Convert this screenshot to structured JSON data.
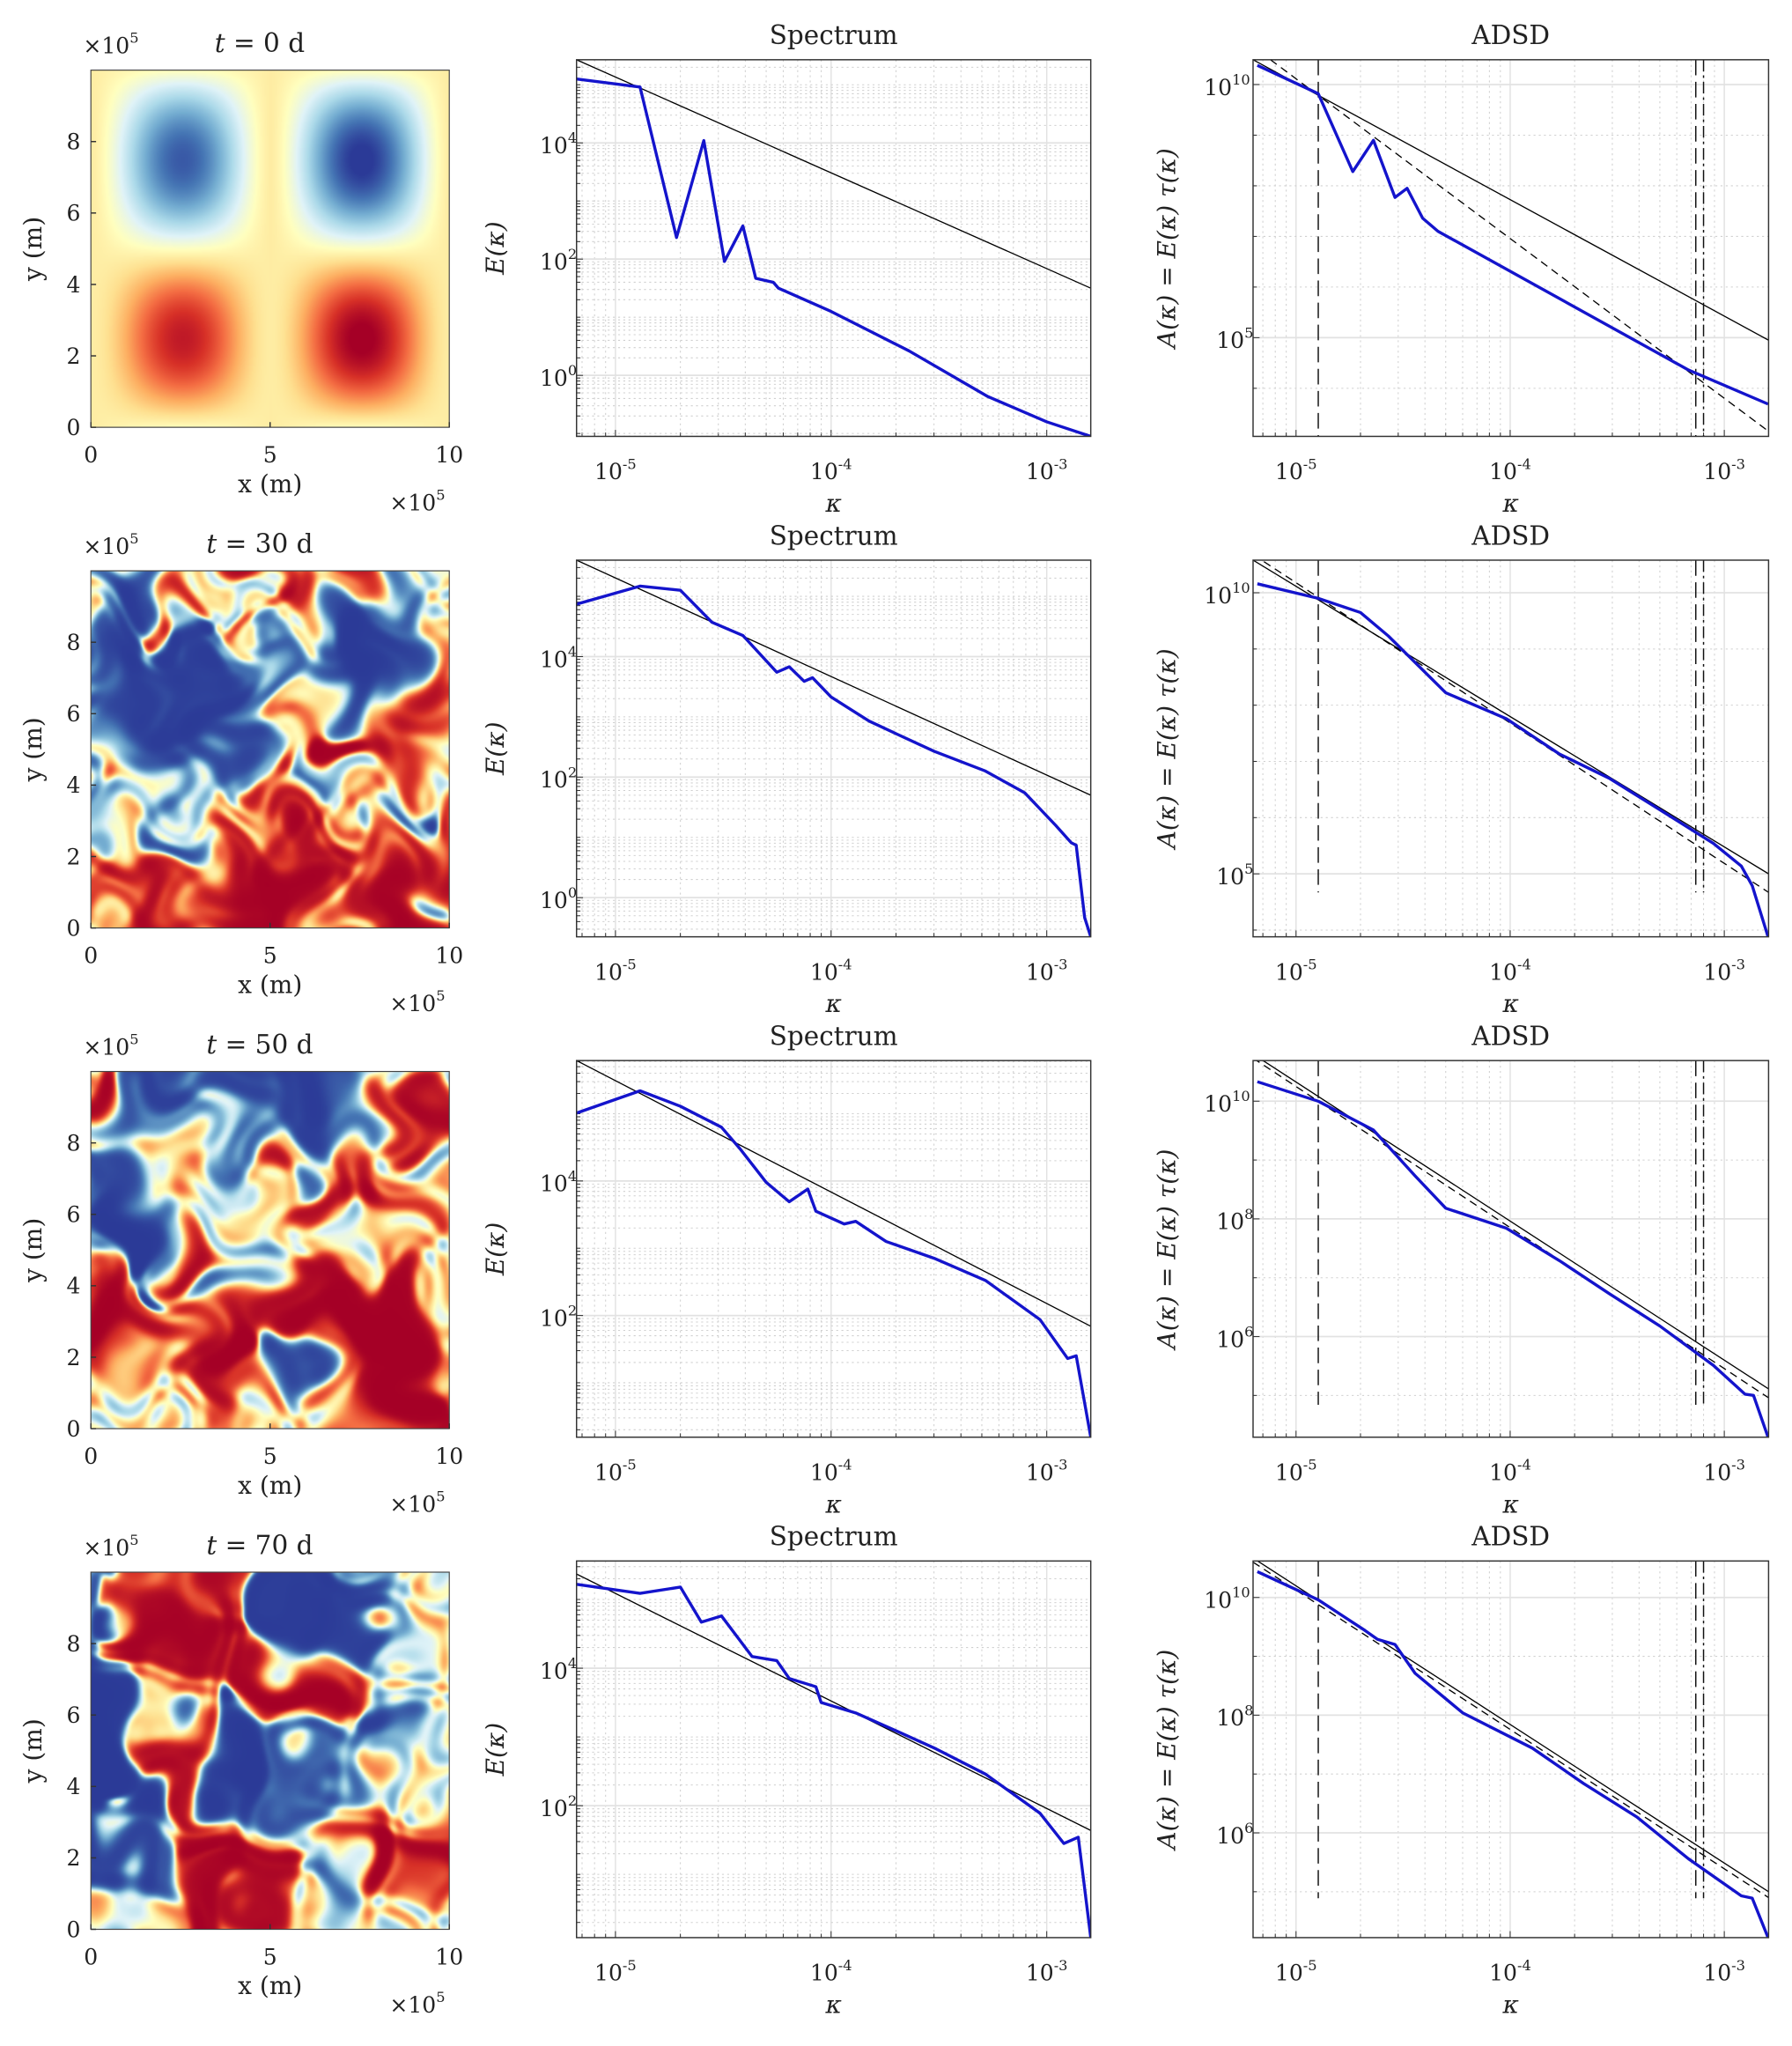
{
  "colors": {
    "series": "#1414cc",
    "reference": "#000000",
    "major_grid": "#e2e2e2",
    "minor_grid": "#d0d0d0",
    "axes": "#333333"
  },
  "colormap": [
    "#2b3a97",
    "#4575b4",
    "#74add1",
    "#abd9e9",
    "#e0f3f8",
    "#ffffbf",
    "#fee090",
    "#fdae61",
    "#f46d43",
    "#d73027",
    "#a50026"
  ],
  "chart_data": [
    {
      "type": "heatmap",
      "row": 0,
      "title_var": "t",
      "title_rest": " = 0 d",
      "xlabel": "x (m)",
      "ylabel": "y (m)",
      "xlim": [
        0,
        10
      ],
      "ylim": [
        0,
        10
      ],
      "xticks": [
        "0",
        "5",
        "10"
      ],
      "yticks": [
        "0",
        "2",
        "4",
        "6",
        "8"
      ],
      "multiplier_base": "×10",
      "multiplier_exp": "5",
      "field": "smooth"
    },
    {
      "type": "line",
      "row": 0,
      "title": "Spectrum",
      "xlabel": "κ",
      "ylabel": "E(κ)",
      "xscale": "log",
      "yscale": "log",
      "xlim": [
        6.6e-06,
        0.0016
      ],
      "ylim_log10": [
        -1.05,
        5.43
      ],
      "xtick_exps": [
        "-5",
        "-4",
        "-3"
      ],
      "ytick_exps": [
        "4",
        "2",
        "0"
      ],
      "series": [
        {
          "name": "E(κ)",
          "kappa": [
            6.6e-06,
            1.3e-05,
            1.92e-05,
            2.57e-05,
            3.2e-05,
            3.9e-05,
            4.47e-05,
            5.4e-05,
            5.7e-05,
            0.0001,
            0.00023,
            0.00053,
            0.001,
            0.0016
          ],
          "log10_value": [
            5.1,
            4.96,
            2.37,
            4.04,
            1.96,
            2.57,
            1.67,
            1.6,
            1.5,
            1.1,
            0.42,
            -0.36,
            -0.8,
            -1.05
          ]
        }
      ],
      "reference_lines": [
        {
          "style": "solid",
          "kappa": [
            6.6e-06,
            0.0016
          ],
          "log10_value": [
            5.43,
            1.5
          ]
        }
      ],
      "vlines": []
    },
    {
      "type": "line",
      "row": 0,
      "title": "ADSD",
      "xlabel": "κ",
      "ylabel": "A(κ) = E(κ) τ(κ)",
      "xscale": "log",
      "yscale": "log",
      "xlim": [
        6.3e-06,
        0.00161
      ],
      "ylim_log10": [
        3.05,
        10.49
      ],
      "xtick_exps": [
        "-5",
        "-4",
        "-3"
      ],
      "ytick_exps": [
        "10",
        "5"
      ],
      "series": [
        {
          "name": "A(κ)",
          "kappa": [
            6.6e-06,
            1.27e-05,
            1.84e-05,
            2.3e-05,
            2.9e-05,
            3.3e-05,
            3.9e-05,
            4.6e-05,
            0.00068,
            0.0016
          ],
          "log10_value": [
            10.38,
            9.82,
            8.28,
            8.9,
            7.77,
            7.95,
            7.36,
            7.1,
            4.36,
            3.69
          ]
        }
      ],
      "reference_lines": [
        {
          "style": "solid",
          "kappa": [
            6.3e-06,
            0.00161
          ],
          "log10_value": [
            10.49,
            4.95
          ]
        },
        {
          "style": "dashed",
          "kappa": [
            7.6e-06,
            0.00161
          ],
          "log10_value": [
            10.49,
            3.15
          ]
        }
      ],
      "vlines": [
        {
          "kappa": 1.27e-05,
          "style": "dash",
          "log10_bottom": 3.05
        },
        {
          "kappa": 0.000736,
          "style": "dash",
          "log10_bottom": 3.05
        },
        {
          "kappa": 0.0008,
          "style": "dashdot",
          "log10_bottom": 3.05
        }
      ]
    },
    {
      "type": "heatmap",
      "row": 1,
      "title_var": "t",
      "title_rest": " = 30 d",
      "xlabel": "x (m)",
      "ylabel": "y (m)",
      "xlim": [
        0,
        10
      ],
      "ylim": [
        0,
        10
      ],
      "xticks": [
        "0",
        "5",
        "10"
      ],
      "yticks": [
        "0",
        "2",
        "4",
        "6",
        "8"
      ],
      "multiplier_base": "×10",
      "multiplier_exp": "5",
      "field": "turbulent-30"
    },
    {
      "type": "line",
      "row": 1,
      "title": "Spectrum",
      "xlabel": "κ",
      "ylabel": "E(κ)",
      "xscale": "log",
      "yscale": "log",
      "xlim": [
        6.6e-06,
        0.0016
      ],
      "ylim_log10": [
        -0.65,
        5.6
      ],
      "xtick_exps": [
        "-5",
        "-4",
        "-3"
      ],
      "ytick_exps": [
        "4",
        "2",
        "0"
      ],
      "series": [
        {
          "name": "E(κ)",
          "kappa": [
            6.6e-06,
            1.3e-05,
            2e-05,
            2.8e-05,
            3.9e-05,
            5.6e-05,
            6.4e-05,
            7.5e-05,
            8.2e-05,
            0.0001,
            0.00012,
            0.00015,
            0.0002,
            0.0003,
            0.00052,
            0.00079,
            0.0011,
            0.0013,
            0.00137,
            0.0015,
            0.0016
          ],
          "log10_value": [
            4.87,
            5.17,
            5.1,
            4.57,
            4.35,
            3.74,
            3.83,
            3.59,
            3.65,
            3.33,
            3.15,
            2.93,
            2.72,
            2.43,
            2.1,
            1.74,
            1.2,
            0.91,
            0.87,
            -0.33,
            -0.65
          ]
        }
      ],
      "reference_lines": [
        {
          "style": "solid",
          "kappa": [
            6.6e-06,
            0.0016
          ],
          "log10_value": [
            5.6,
            1.7
          ]
        }
      ],
      "vlines": []
    },
    {
      "type": "line",
      "row": 1,
      "title": "ADSD",
      "xlabel": "κ",
      "ylabel": "A(κ) = E(κ) τ(κ)",
      "xscale": "log",
      "yscale": "log",
      "xlim": [
        6.3e-06,
        0.00161
      ],
      "ylim_log10": [
        3.88,
        10.58
      ],
      "xtick_exps": [
        "-5",
        "-4",
        "-3"
      ],
      "ytick_exps": [
        "10",
        "5"
      ],
      "series": [
        {
          "name": "A(κ)",
          "kappa": [
            6.6e-06,
            1.27e-05,
            2e-05,
            2.7e-05,
            3.6e-05,
            5e-05,
            9.6e-05,
            0.00017,
            0.00029,
            0.0005,
            0.00089,
            0.0012,
            0.00135,
            0.0016
          ],
          "log10_value": [
            10.16,
            9.9,
            9.65,
            9.23,
            8.76,
            8.22,
            7.76,
            7.13,
            6.7,
            6.14,
            5.54,
            5.14,
            4.79,
            3.88
          ]
        }
      ],
      "reference_lines": [
        {
          "style": "solid",
          "kappa": [
            6.3e-06,
            0.00161
          ],
          "log10_value": [
            10.58,
            5.0
          ]
        },
        {
          "style": "dashed",
          "kappa": [
            6.3e-06,
            0.00161
          ],
          "log10_value": [
            10.68,
            4.67
          ]
        }
      ],
      "vlines": [
        {
          "kappa": 1.27e-05,
          "style": "dash",
          "log10_bottom": 4.67
        },
        {
          "kappa": 0.000736,
          "style": "dash",
          "log10_bottom": 4.67
        },
        {
          "kappa": 0.0008,
          "style": "dashdot",
          "log10_bottom": 4.67
        }
      ]
    },
    {
      "type": "heatmap",
      "row": 2,
      "title_var": "t",
      "title_rest": " = 50 d",
      "xlabel": "x (m)",
      "ylabel": "y (m)",
      "xlim": [
        0,
        10
      ],
      "ylim": [
        0,
        10
      ],
      "xticks": [
        "0",
        "5",
        "10"
      ],
      "yticks": [
        "0",
        "2",
        "4",
        "6",
        "8"
      ],
      "multiplier_base": "×10",
      "multiplier_exp": "5",
      "field": "turbulent-50"
    },
    {
      "type": "line",
      "row": 2,
      "title": "Spectrum",
      "xlabel": "κ",
      "ylabel": "E(κ)",
      "xscale": "log",
      "yscale": "log",
      "xlim": [
        6.6e-06,
        0.0016
      ],
      "ylim_log10": [
        0.19,
        5.79
      ],
      "xtick_exps": [
        "-5",
        "-4",
        "-3"
      ],
      "ytick_exps": [
        "4",
        "2"
      ],
      "series": [
        {
          "name": "E(κ)",
          "kappa": [
            6.6e-06,
            1.3e-05,
            2e-05,
            3.1e-05,
            3.8e-05,
            5e-05,
            6.4e-05,
            7.8e-05,
            8.5e-05,
            0.000115,
            0.00013,
            0.00018,
            0.0003,
            0.00052,
            0.00093,
            0.00125,
            0.00137,
            0.0016
          ],
          "log10_value": [
            5.01,
            5.34,
            5.11,
            4.8,
            4.47,
            3.98,
            3.69,
            3.88,
            3.55,
            3.36,
            3.4,
            3.1,
            2.85,
            2.52,
            1.94,
            1.36,
            1.4,
            0.19
          ]
        }
      ],
      "reference_lines": [
        {
          "style": "solid",
          "kappa": [
            6.6e-06,
            0.0016
          ],
          "log10_value": [
            5.79,
            1.84
          ]
        }
      ],
      "vlines": []
    },
    {
      "type": "line",
      "row": 2,
      "title": "ADSD",
      "xlabel": "κ",
      "ylabel": "A(κ) = E(κ) τ(κ)",
      "xscale": "log",
      "yscale": "log",
      "xlim": [
        6.3e-06,
        0.00161
      ],
      "ylim_log10": [
        4.29,
        10.69
      ],
      "xtick_exps": [
        "-5",
        "-4",
        "-3"
      ],
      "ytick_exps": [
        "10",
        "8",
        "6"
      ],
      "series": [
        {
          "name": "A(κ)",
          "kappa": [
            6.6e-06,
            1.27e-05,
            2.3e-05,
            3.6e-05,
            5e-05,
            9.6e-05,
            0.00017,
            0.00029,
            0.0005,
            0.00089,
            0.00125,
            0.00137,
            0.0016
          ],
          "log10_value": [
            10.33,
            10.0,
            9.51,
            8.73,
            8.18,
            7.84,
            7.29,
            6.73,
            6.18,
            5.51,
            5.02,
            5.0,
            4.29
          ]
        }
      ],
      "reference_lines": [
        {
          "style": "solid",
          "kappa": [
            6.3e-06,
            0.00161
          ],
          "log10_value": [
            10.8,
            5.11
          ]
        },
        {
          "style": "dashed",
          "kappa": [
            6.3e-06,
            0.00161
          ],
          "log10_value": [
            10.73,
            4.96
          ]
        }
      ],
      "vlines": [
        {
          "kappa": 1.27e-05,
          "style": "dash",
          "log10_bottom": 4.84
        },
        {
          "kappa": 0.000736,
          "style": "dash",
          "log10_bottom": 4.84
        },
        {
          "kappa": 0.0008,
          "style": "dashdot",
          "log10_bottom": 4.84
        }
      ]
    },
    {
      "type": "heatmap",
      "row": 3,
      "title_var": "t",
      "title_rest": " = 70 d",
      "xlabel": "x (m)",
      "ylabel": "y (m)",
      "xlim": [
        0,
        10
      ],
      "ylim": [
        0,
        10
      ],
      "xticks": [
        "0",
        "5",
        "10"
      ],
      "yticks": [
        "0",
        "2",
        "4",
        "6",
        "8"
      ],
      "multiplier_base": "×10",
      "multiplier_exp": "5",
      "field": "turbulent-70"
    },
    {
      "type": "line",
      "row": 3,
      "title": "Spectrum",
      "xlabel": "κ",
      "ylabel": "E(κ)",
      "xscale": "log",
      "yscale": "log",
      "xlim": [
        6.6e-06,
        0.0016
      ],
      "ylim_log10": [
        0.08,
        5.56
      ],
      "xtick_exps": [
        "-5",
        "-4",
        "-3"
      ],
      "ytick_exps": [
        "4",
        "2"
      ],
      "series": [
        {
          "name": "E(κ)",
          "kappa": [
            6.6e-06,
            1.3e-05,
            2e-05,
            2.5e-05,
            3.1e-05,
            4.3e-05,
            5.6e-05,
            6.4e-05,
            8.5e-05,
            9e-05,
            0.00013,
            0.0002,
            0.0003,
            0.00052,
            0.00093,
            0.0012,
            0.0014,
            0.0016
          ],
          "log10_value": [
            5.22,
            5.09,
            5.18,
            4.67,
            4.76,
            4.17,
            4.11,
            3.85,
            3.73,
            3.5,
            3.35,
            3.09,
            2.84,
            2.46,
            1.89,
            1.45,
            1.54,
            0.08
          ]
        }
      ],
      "reference_lines": [
        {
          "style": "solid",
          "kappa": [
            6.6e-06,
            0.0016
          ],
          "log10_value": [
            5.37,
            1.64
          ]
        }
      ],
      "vlines": []
    },
    {
      "type": "line",
      "row": 3,
      "title": "ADSD",
      "xlabel": "κ",
      "ylabel": "A(κ) = E(κ) τ(κ)",
      "xscale": "log",
      "yscale": "log",
      "xlim": [
        6.3e-06,
        0.00161
      ],
      "ylim_log10": [
        4.22,
        10.62
      ],
      "xtick_exps": [
        "-5",
        "-4",
        "-3"
      ],
      "ytick_exps": [
        "10",
        "8",
        "6"
      ],
      "series": [
        {
          "name": "A(κ)",
          "kappa": [
            6.6e-06,
            1.27e-05,
            2.1e-05,
            2.4e-05,
            2.9e-05,
            3.6e-05,
            6e-05,
            0.000127,
            0.00022,
            0.00039,
            0.00068,
            0.0012,
            0.00135,
            0.0016
          ],
          "log10_value": [
            10.44,
            9.96,
            9.44,
            9.29,
            9.2,
            8.71,
            8.04,
            7.44,
            6.84,
            6.27,
            5.56,
            4.93,
            4.89,
            4.22
          ]
        }
      ],
      "reference_lines": [
        {
          "style": "solid",
          "kappa": [
            6.3e-06,
            0.00161
          ],
          "log10_value": [
            10.67,
            5.0
          ]
        },
        {
          "style": "dashed",
          "kappa": [
            6.3e-06,
            0.00161
          ],
          "log10_value": [
            10.6,
            4.9
          ]
        }
      ],
      "vlines": [
        {
          "kappa": 1.27e-05,
          "style": "dash",
          "log10_bottom": 4.89
        },
        {
          "kappa": 0.000736,
          "style": "dash",
          "log10_bottom": 4.89
        },
        {
          "kappa": 0.0008,
          "style": "dashdot",
          "log10_bottom": 4.89
        }
      ]
    }
  ]
}
